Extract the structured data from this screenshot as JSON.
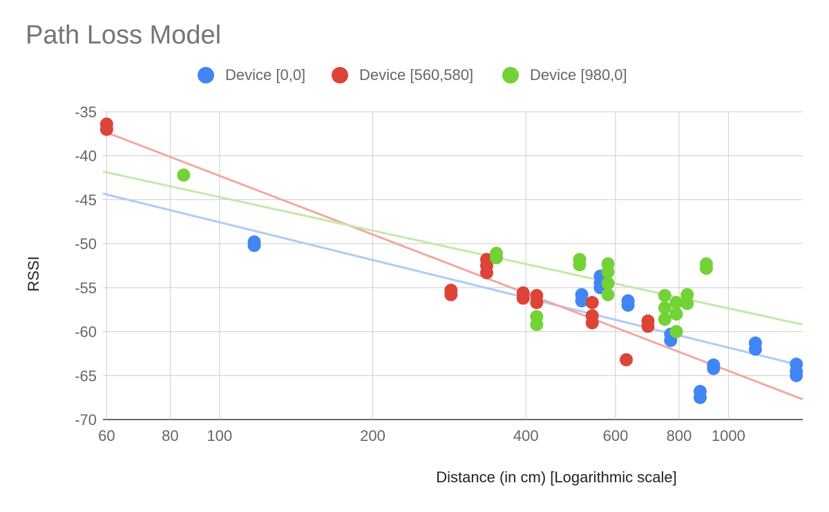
{
  "chart_data": {
    "type": "scatter",
    "title": "Path Loss Model",
    "xlabel": "Distance (in cm) [Logarithmic scale]",
    "ylabel": "RSSI",
    "x_scale": "log",
    "xlim": [
      59,
      1400
    ],
    "ylim": [
      -70,
      -35
    ],
    "x_ticks": [
      60,
      80,
      100,
      200,
      400,
      600,
      800,
      1000
    ],
    "y_ticks": [
      -35,
      -40,
      -45,
      -50,
      -55,
      -60,
      -65,
      -70
    ],
    "grid": true,
    "legend_position": "top",
    "series": [
      {
        "name": "Device [0,0]",
        "color": "#4285F4",
        "trendline_color": "#AECBFA",
        "points": [
          [
            117,
            -49.8
          ],
          [
            117,
            -50.2
          ],
          [
            515,
            -55.8
          ],
          [
            515,
            -56.5
          ],
          [
            560,
            -53.7
          ],
          [
            560,
            -54.5
          ],
          [
            560,
            -55.0
          ],
          [
            635,
            -56.5
          ],
          [
            635,
            -57.0
          ],
          [
            770,
            -60.3
          ],
          [
            770,
            -61.0
          ],
          [
            880,
            -66.8
          ],
          [
            880,
            -67.5
          ],
          [
            935,
            -63.8
          ],
          [
            935,
            -64.2
          ],
          [
            1130,
            -61.3
          ],
          [
            1130,
            -62.0
          ],
          [
            1360,
            -63.7
          ],
          [
            1360,
            -64.5
          ],
          [
            1360,
            -65.0
          ]
        ],
        "trendline": [
          [
            59,
            -44.3
          ],
          [
            1400,
            -63.9
          ]
        ]
      },
      {
        "name": "Device [560,580]",
        "color": "#DB4437",
        "trendline_color": "#F2A8A0",
        "points": [
          [
            60,
            -36.4
          ],
          [
            60,
            -37.0
          ],
          [
            285,
            -55.3
          ],
          [
            285,
            -55.8
          ],
          [
            335,
            -51.8
          ],
          [
            335,
            -52.5
          ],
          [
            335,
            -53.3
          ],
          [
            395,
            -55.6
          ],
          [
            395,
            -56.2
          ],
          [
            420,
            -55.9
          ],
          [
            420,
            -56.7
          ],
          [
            540,
            -56.7
          ],
          [
            540,
            -58.2
          ],
          [
            540,
            -59.0
          ],
          [
            630,
            -63.2
          ],
          [
            695,
            -58.8
          ],
          [
            695,
            -59.4
          ]
        ],
        "trendline": [
          [
            59,
            -37.2
          ],
          [
            1400,
            -67.7
          ]
        ]
      },
      {
        "name": "Device [980,0]",
        "color": "#72D236",
        "trendline_color": "#C5E8A8",
        "points": [
          [
            85,
            -42.2
          ],
          [
            350,
            -51.1
          ],
          [
            350,
            -51.6
          ],
          [
            420,
            -58.3
          ],
          [
            420,
            -59.2
          ],
          [
            510,
            -51.8
          ],
          [
            510,
            -52.4
          ],
          [
            580,
            -52.3
          ],
          [
            580,
            -53.2
          ],
          [
            580,
            -54.5
          ],
          [
            580,
            -55.8
          ],
          [
            750,
            -55.9
          ],
          [
            750,
            -57.3
          ],
          [
            750,
            -58.6
          ],
          [
            790,
            -56.7
          ],
          [
            790,
            -58.0
          ],
          [
            790,
            -60.0
          ],
          [
            830,
            -55.8
          ],
          [
            830,
            -56.8
          ],
          [
            905,
            -52.3
          ],
          [
            905,
            -52.8
          ]
        ],
        "trendline": [
          [
            59,
            -41.8
          ],
          [
            1400,
            -59.2
          ]
        ]
      }
    ]
  }
}
